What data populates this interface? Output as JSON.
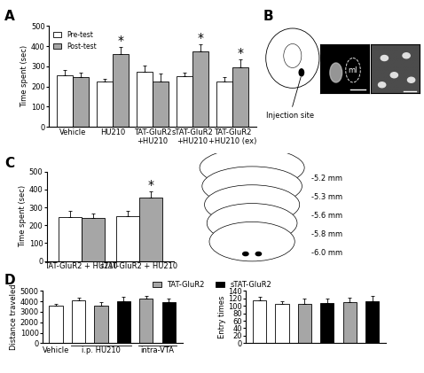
{
  "panels": [
    "A",
    "B",
    "C",
    "D"
  ],
  "chart_data": [
    {
      "panel": "A",
      "type": "bar",
      "y_label": "Time spent (sec)",
      "categories": [
        "Vehicle",
        "HU210",
        "TAT-GluR2\n+HU210",
        "sTAT-GluR2\n+HU210",
        "TAT-GluR2\n+HU210 (ex)"
      ],
      "series": [
        {
          "name": "Pre-test",
          "color": "#ffffff",
          "values": [
            255,
            225,
            275,
            250,
            225
          ],
          "errors": [
            25,
            15,
            30,
            20,
            20
          ]
        },
        {
          "name": "Post-test",
          "color": "#a6a6a6",
          "values": [
            245,
            360,
            225,
            375,
            295
          ],
          "errors": [
            25,
            35,
            40,
            35,
            40
          ]
        }
      ],
      "ylim": [
        0,
        500
      ],
      "yticks": [
        0,
        100,
        200,
        300,
        400,
        500
      ],
      "legend": "upper left",
      "annotations": [
        {
          "text": "*",
          "category": "HU210"
        },
        {
          "text": "*",
          "category": "sTAT-GluR2\n+HU210"
        },
        {
          "text": "*",
          "category": "TAT-GluR2\n+HU210 (ex)"
        }
      ]
    },
    {
      "panel": "C",
      "type": "bar",
      "y_label": "Time spent (sec)",
      "categories": [
        "TAT-GluR2 + HU210",
        "sTAT-GluR2 + HU210"
      ],
      "series": [
        {
          "color": "#ffffff",
          "values": [
            245,
            250
          ],
          "errors": [
            35,
            30
          ]
        },
        {
          "color": "#a6a6a6",
          "values": [
            240,
            355
          ],
          "errors": [
            25,
            35
          ]
        }
      ],
      "ylim": [
        0,
        500
      ],
      "yticks": [
        0,
        100,
        200,
        300,
        400,
        500
      ],
      "annotations": [
        {
          "text": "*",
          "category": "sTAT-GluR2 + HU210"
        }
      ]
    },
    {
      "panel": "D",
      "type": "bar",
      "y_label": "Distance traveled",
      "categories": [
        "Vehicle",
        "i.p. HU210",
        "i.p. HU210",
        "i.p. HU210",
        "intra-VTA",
        "intra-VTA"
      ],
      "series": [
        {
          "color": "#ffffff",
          "values": [
            3600,
            4100,
            null,
            null,
            null,
            null
          ],
          "errors": [
            150,
            250,
            null,
            null,
            null,
            null
          ]
        },
        {
          "name": "TAT-GluR2",
          "color": "#a6a6a6",
          "values": [
            null,
            null,
            3550,
            null,
            4250,
            null
          ],
          "errors": [
            null,
            null,
            400,
            null,
            300,
            null
          ]
        },
        {
          "name": "sTAT-GluR2",
          "color": "#000000",
          "values": [
            null,
            null,
            null,
            4050,
            null,
            3950
          ],
          "errors": [
            null,
            null,
            null,
            350,
            null,
            300
          ]
        }
      ],
      "ylim": [
        0,
        5000
      ],
      "yticks": [
        0,
        1000,
        2000,
        3000,
        4000,
        5000
      ],
      "legend": "upper center",
      "tick_labels": "y"
    },
    {
      "panel": "D",
      "type": "bar",
      "y_label": "Entry times",
      "categories": [
        null,
        null,
        null,
        null,
        null,
        null
      ],
      "series": [
        {
          "color": "#ffffff",
          "values": [
            115,
            105,
            null,
            null,
            null,
            null
          ],
          "errors": [
            10,
            8,
            null,
            null,
            null,
            null
          ]
        },
        {
          "name": "TAT-GluR2",
          "color": "#a6a6a6",
          "values": [
            null,
            null,
            105,
            null,
            110,
            null
          ],
          "errors": [
            null,
            null,
            15,
            null,
            12,
            null
          ]
        },
        {
          "name": "sTAT-GluR2",
          "color": "#000000",
          "values": [
            null,
            null,
            null,
            108,
            null,
            112
          ],
          "errors": [
            null,
            null,
            null,
            12,
            null,
            15
          ]
        }
      ],
      "ylim": [
        0,
        140
      ],
      "yticks": [
        0,
        20,
        40,
        60,
        80,
        100,
        120,
        140
      ],
      "tick_labels": "y"
    }
  ],
  "diagram": {
    "panel": "B",
    "injection_label": "Injection site",
    "region_label": "ml"
  },
  "atlas": {
    "panel": "C",
    "levels": [
      "-5.2 mm",
      "-5.3 mm",
      "-5.6 mm",
      "-5.8 mm",
      "-6.0 mm"
    ]
  }
}
